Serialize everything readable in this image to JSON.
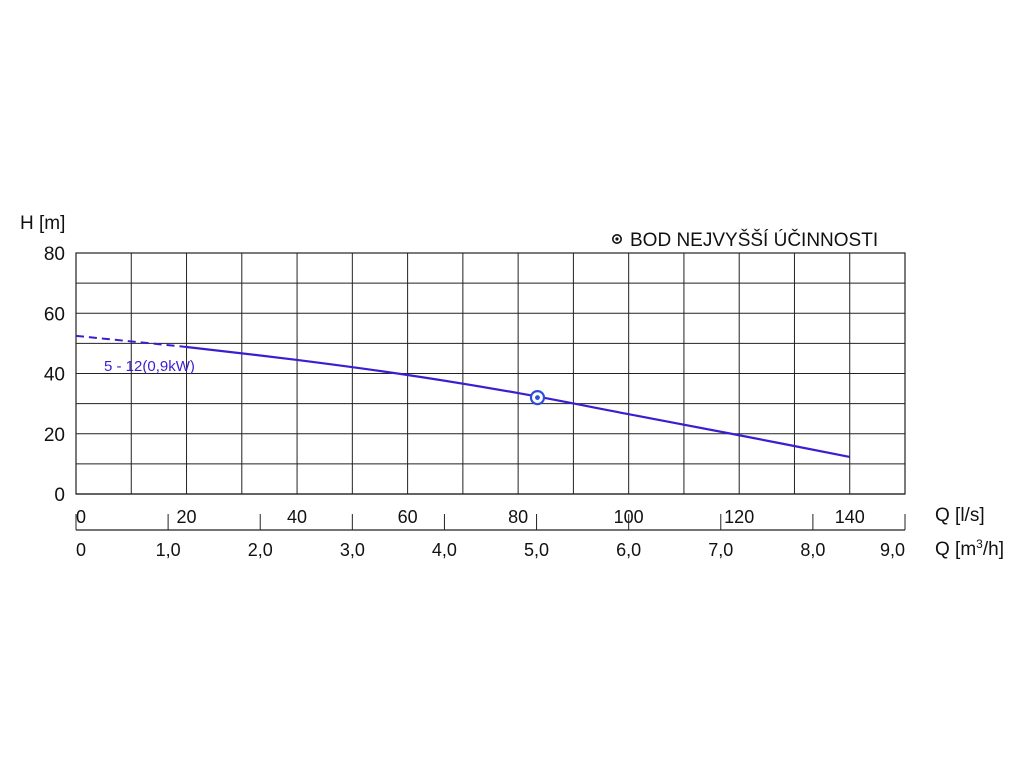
{
  "chart_data": {
    "type": "line",
    "ylabel": "H [m]",
    "xlabel": "Q [l/s]",
    "x2label_prefix": "Q [m",
    "x2label_sup": "3",
    "x2label_suffix": "/h]",
    "legend_label": "BOD NEJVYŠŠÍ ÚČINNOSTI",
    "legend_position": "top-right",
    "ylim": [
      0,
      80
    ],
    "xlim": [
      0,
      150
    ],
    "x2lim": [
      0,
      9
    ],
    "grid": true,
    "y_ticks": [
      "0",
      "20",
      "40",
      "60",
      "80"
    ],
    "x_ticks": [
      "0",
      "20",
      "40",
      "60",
      "80",
      "100",
      "120",
      "140"
    ],
    "x2_ticks": [
      "0",
      "1,0",
      "2,0",
      "3,0",
      "4,0",
      "5,0",
      "6,0",
      "7,0",
      "8,0",
      "9,0"
    ],
    "series": [
      {
        "name": "5 - 12(0,9kW)",
        "color": "#3a1fd0",
        "dashed_segment": {
          "x": [
            0,
            20
          ],
          "y": [
            52.5,
            48.8
          ]
        },
        "x": [
          20,
          40,
          60,
          80,
          100,
          120,
          140
        ],
        "y": [
          48.8,
          44.5,
          39.5,
          33.5,
          26.5,
          19.5,
          12.3
        ]
      }
    ],
    "best_efficiency_point": {
      "x": 83.5,
      "y": 32
    },
    "marker_color": "#2b4fd8"
  }
}
